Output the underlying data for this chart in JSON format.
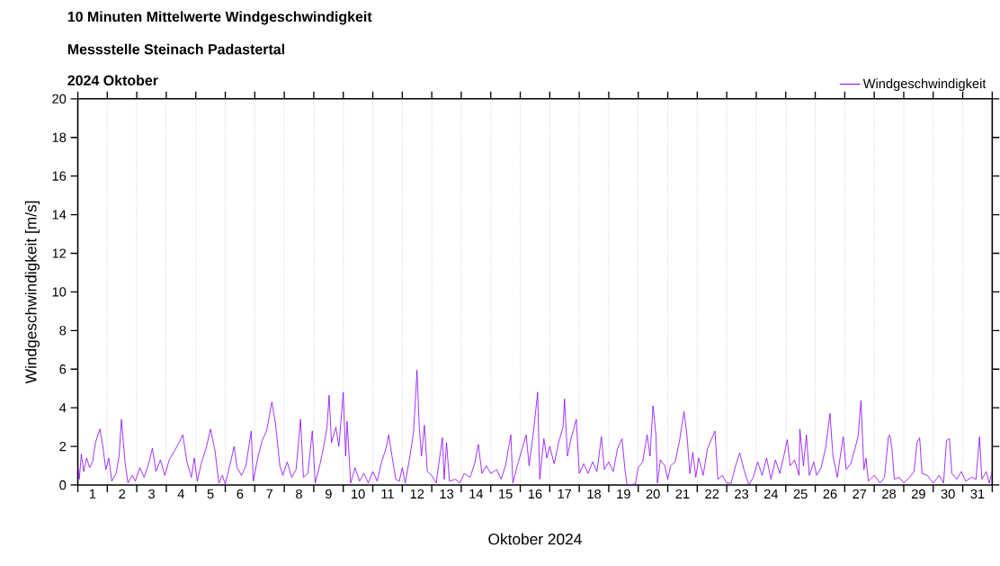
{
  "chart_data": {
    "type": "line",
    "title": "10 Minuten Mittelwerte Windgeschwindigkeit",
    "subtitle": "Messstelle Steinach Padastertal",
    "annotations": [
      "2024 Oktober"
    ],
    "xlabel": "Oktober 2024",
    "ylabel": "Windgeschwindigkeit [m/s]",
    "xlim": [
      1,
      32
    ],
    "ylim": [
      0,
      20
    ],
    "yticks": [
      0,
      2,
      4,
      6,
      8,
      10,
      12,
      14,
      16,
      18,
      20
    ],
    "xticks": [
      {
        "value": 1,
        "label": null
      },
      {
        "value": 1.5,
        "label": "1"
      },
      {
        "value": 2,
        "label": null
      },
      {
        "value": 2.5,
        "label": "2"
      },
      {
        "value": 3,
        "label": null
      },
      {
        "value": 3.5,
        "label": "3"
      },
      {
        "value": 4,
        "label": null
      },
      {
        "value": 4.5,
        "label": "4"
      },
      {
        "value": 5,
        "label": null
      },
      {
        "value": 5.5,
        "label": "5"
      },
      {
        "value": 6,
        "label": null
      },
      {
        "value": 6.5,
        "label": "6"
      },
      {
        "value": 7,
        "label": null
      },
      {
        "value": 7.5,
        "label": "7"
      },
      {
        "value": 8,
        "label": null
      },
      {
        "value": 8.5,
        "label": "8"
      },
      {
        "value": 9,
        "label": null
      },
      {
        "value": 9.5,
        "label": "9"
      },
      {
        "value": 10,
        "label": null
      },
      {
        "value": 10.5,
        "label": "10"
      },
      {
        "value": 11,
        "label": null
      },
      {
        "value": 11.5,
        "label": "11"
      },
      {
        "value": 12,
        "label": null
      },
      {
        "value": 12.5,
        "label": "12"
      },
      {
        "value": 13,
        "label": null
      },
      {
        "value": 13.5,
        "label": "13"
      },
      {
        "value": 14,
        "label": null
      },
      {
        "value": 14.5,
        "label": "14"
      },
      {
        "value": 15,
        "label": null
      },
      {
        "value": 15.5,
        "label": "15"
      },
      {
        "value": 16,
        "label": null
      },
      {
        "value": 16.5,
        "label": "16"
      },
      {
        "value": 17,
        "label": null
      },
      {
        "value": 17.5,
        "label": "17"
      },
      {
        "value": 18,
        "label": null
      },
      {
        "value": 18.5,
        "label": "18"
      },
      {
        "value": 19,
        "label": null
      },
      {
        "value": 19.5,
        "label": "19"
      },
      {
        "value": 20,
        "label": null
      },
      {
        "value": 20.5,
        "label": "20"
      },
      {
        "value": 21,
        "label": null
      },
      {
        "value": 21.5,
        "label": "21"
      },
      {
        "value": 22,
        "label": null
      },
      {
        "value": 22.5,
        "label": "22"
      },
      {
        "value": 23,
        "label": null
      },
      {
        "value": 23.5,
        "label": "23"
      },
      {
        "value": 24,
        "label": null
      },
      {
        "value": 24.5,
        "label": "24"
      },
      {
        "value": 25,
        "label": null
      },
      {
        "value": 25.5,
        "label": "25"
      },
      {
        "value": 26,
        "label": null
      },
      {
        "value": 26.5,
        "label": "26"
      },
      {
        "value": 27,
        "label": null
      },
      {
        "value": 27.5,
        "label": "27"
      },
      {
        "value": 28,
        "label": null
      },
      {
        "value": 28.5,
        "label": "28"
      },
      {
        "value": 29,
        "label": null
      },
      {
        "value": 29.5,
        "label": "29"
      },
      {
        "value": 30,
        "label": null
      },
      {
        "value": 30.5,
        "label": "30"
      },
      {
        "value": 31,
        "label": null
      },
      {
        "value": 31.5,
        "label": "31"
      },
      {
        "value": 32,
        "label": null
      }
    ],
    "grid": "x",
    "legend": "top right",
    "marker": "none",
    "line_style": "solid",
    "series": [
      {
        "name": "Windgeschwindigkeit",
        "color": "#8a00ff",
        "x": [
          1.0,
          1.05,
          1.12,
          1.2,
          1.3,
          1.4,
          1.5,
          1.6,
          1.75,
          1.85,
          1.95,
          2.05,
          2.15,
          2.3,
          2.4,
          2.48,
          2.6,
          2.7,
          2.85,
          2.95,
          3.1,
          3.25,
          3.4,
          3.53,
          3.65,
          3.8,
          3.95,
          4.1,
          4.25,
          4.4,
          4.56,
          4.7,
          4.85,
          4.95,
          5.05,
          5.2,
          5.35,
          5.5,
          5.65,
          5.78,
          5.9,
          6.0,
          6.15,
          6.3,
          6.4,
          6.55,
          6.7,
          6.88,
          6.95,
          7.1,
          7.25,
          7.4,
          7.58,
          7.7,
          7.85,
          7.95,
          8.1,
          8.25,
          8.4,
          8.55,
          8.65,
          8.8,
          8.95,
          9.05,
          9.2,
          9.35,
          9.45,
          9.52,
          9.6,
          9.75,
          9.85,
          10.0,
          10.08,
          10.13,
          10.25,
          10.4,
          10.55,
          10.7,
          10.85,
          11.0,
          11.15,
          11.3,
          11.45,
          11.54,
          11.65,
          11.78,
          11.9,
          12.0,
          12.1,
          12.25,
          12.38,
          12.45,
          12.5,
          12.58,
          12.65,
          12.75,
          12.85,
          13.0,
          13.15,
          13.36,
          13.42,
          13.5,
          13.6,
          13.8,
          13.95,
          14.1,
          14.3,
          14.45,
          14.58,
          14.7,
          14.85,
          15.0,
          15.2,
          15.35,
          15.5,
          15.68,
          15.75,
          15.9,
          16.05,
          16.2,
          16.3,
          16.45,
          16.59,
          16.66,
          16.8,
          16.9,
          17.0,
          17.15,
          17.3,
          17.45,
          17.5,
          17.6,
          17.72,
          17.9,
          18.0,
          18.15,
          18.3,
          18.45,
          18.6,
          18.75,
          18.85,
          19.0,
          19.15,
          19.3,
          19.45,
          19.55,
          19.62,
          19.9,
          20.0,
          20.15,
          20.3,
          20.4,
          20.5,
          20.6,
          20.65,
          20.75,
          20.9,
          21.0,
          21.1,
          21.25,
          21.4,
          21.55,
          21.65,
          21.75,
          21.85,
          21.95,
          22.05,
          22.2,
          22.35,
          22.6,
          22.7,
          22.85,
          23.0,
          23.15,
          23.3,
          23.44,
          23.6,
          23.75,
          23.9,
          24.05,
          24.2,
          24.35,
          24.5,
          24.65,
          24.8,
          24.95,
          25.05,
          25.15,
          25.3,
          25.45,
          25.48,
          25.6,
          25.7,
          25.8,
          25.95,
          26.05,
          26.2,
          26.35,
          26.5,
          26.6,
          26.75,
          26.85,
          26.95,
          27.05,
          27.2,
          27.35,
          27.45,
          27.55,
          27.65,
          27.72,
          27.8,
          28.0,
          28.2,
          28.35,
          28.48,
          28.53,
          28.6,
          28.68,
          28.85,
          29.0,
          29.2,
          29.35,
          29.45,
          29.54,
          29.62,
          29.8,
          30.0,
          30.2,
          30.35,
          30.45,
          30.55,
          30.63,
          30.8,
          30.95,
          31.1,
          31.3,
          31.45,
          31.57,
          31.65,
          31.8,
          31.9,
          32.0
        ],
        "values": [
          1.0,
          0.3,
          1.6,
          0.7,
          1.4,
          0.9,
          1.2,
          2.2,
          2.9,
          2.0,
          0.8,
          1.4,
          0.2,
          0.6,
          1.5,
          3.4,
          1.2,
          0.1,
          0.5,
          0.2,
          0.9,
          0.4,
          1.1,
          1.9,
          0.7,
          1.3,
          0.5,
          1.3,
          1.7,
          2.1,
          2.6,
          1.2,
          0.4,
          1.4,
          0.2,
          1.2,
          1.9,
          2.9,
          1.8,
          0.1,
          0.5,
          0.05,
          1.0,
          2.0,
          0.9,
          0.5,
          1.0,
          2.8,
          0.2,
          1.4,
          2.3,
          2.8,
          4.3,
          3.2,
          1.0,
          0.5,
          1.2,
          0.4,
          0.8,
          3.4,
          0.4,
          0.6,
          2.8,
          0.1,
          1.0,
          2.1,
          3.0,
          4.65,
          2.2,
          3.0,
          2.0,
          4.8,
          1.5,
          3.3,
          0.1,
          0.9,
          0.2,
          0.6,
          0.1,
          0.7,
          0.2,
          1.2,
          1.9,
          2.6,
          1.5,
          0.3,
          0.2,
          0.9,
          0.1,
          1.4,
          2.7,
          4.5,
          5.95,
          2.9,
          1.5,
          3.1,
          0.7,
          0.5,
          0.1,
          2.45,
          0.3,
          2.2,
          0.2,
          0.3,
          0.1,
          0.6,
          0.4,
          1.1,
          2.1,
          0.6,
          1.0,
          0.6,
          0.8,
          0.3,
          1.0,
          2.6,
          0.1,
          1.0,
          1.8,
          2.6,
          1.0,
          2.8,
          4.8,
          0.3,
          2.4,
          1.4,
          2.0,
          1.1,
          2.2,
          3.0,
          4.46,
          1.5,
          2.4,
          3.4,
          0.6,
          1.1,
          0.6,
          1.2,
          0.7,
          2.5,
          0.8,
          1.2,
          0.7,
          1.9,
          2.4,
          0.8,
          0.0,
          0.05,
          0.9,
          1.2,
          2.6,
          1.5,
          4.1,
          2.6,
          0.1,
          1.3,
          1.0,
          0.3,
          1.0,
          1.2,
          2.3,
          3.8,
          2.6,
          0.6,
          1.7,
          0.4,
          1.4,
          0.5,
          1.9,
          2.8,
          0.3,
          0.5,
          0.1,
          0.1,
          1.0,
          1.66,
          0.7,
          0.0,
          0.4,
          1.2,
          0.5,
          1.4,
          0.3,
          1.3,
          0.6,
          1.6,
          2.35,
          1.0,
          1.3,
          0.5,
          2.9,
          1.0,
          2.6,
          0.5,
          1.2,
          0.5,
          0.9,
          1.9,
          3.7,
          1.5,
          0.4,
          1.5,
          2.5,
          0.8,
          1.1,
          1.9,
          2.5,
          4.37,
          0.8,
          1.4,
          0.2,
          0.5,
          0.1,
          0.4,
          2.5,
          2.6,
          1.9,
          0.3,
          0.4,
          0.1,
          0.4,
          0.7,
          2.2,
          2.45,
          0.6,
          0.5,
          0.1,
          0.5,
          0.1,
          2.3,
          2.4,
          0.6,
          0.3,
          0.7,
          0.2,
          0.4,
          0.3,
          2.5,
          0.3,
          0.7,
          0.1,
          0.7
        ]
      }
    ]
  }
}
